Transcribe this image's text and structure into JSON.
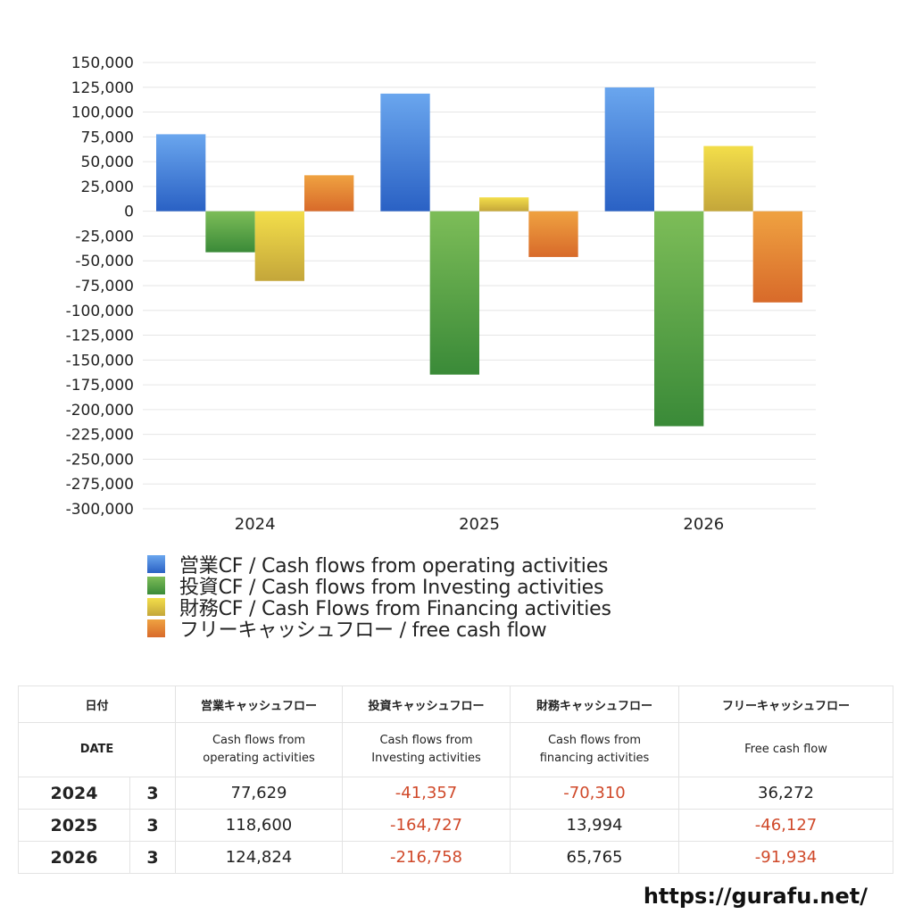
{
  "chart_data": {
    "type": "bar",
    "categories": [
      "2024",
      "2025",
      "2026"
    ],
    "ylim": [
      -300000,
      150000
    ],
    "y_ticks": [
      "150,000",
      "125,000",
      "100,000",
      "75,000",
      "50,000",
      "25,000",
      "0",
      "-25,000",
      "-50,000",
      "-75,000",
      "-100,000",
      "-125,000",
      "-150,000",
      "-175,000",
      "-200,000",
      "-225,000",
      "-250,000",
      "-275,000",
      "-300,000"
    ],
    "grid": true,
    "legend_position": "bottom",
    "series": [
      {
        "name": "営業CF / Cash flows from operating activities",
        "values": [
          77629,
          118600,
          124824
        ],
        "color_top": "#6aa6ee",
        "color_bottom": "#2a61c4"
      },
      {
        "name": "投資CF / Cash flows from Investing activities",
        "values": [
          -41357,
          -164727,
          -216758
        ],
        "color_top": "#7dbd58",
        "color_bottom": "#3a8a38"
      },
      {
        "name": "財務CF / Cash Flows from Financing activities",
        "values": [
          -70310,
          13994,
          65765
        ],
        "color_top": "#f3de4a",
        "color_bottom": "#c4a63a"
      },
      {
        "name": "フリーキャッシュフロー / free cash flow",
        "values": [
          36272,
          -46127,
          -91934
        ],
        "color_top": "#efa241",
        "color_bottom": "#d86a2a"
      }
    ]
  },
  "table": {
    "header": {
      "date": "日付",
      "operating": "営業キャッシュフロー",
      "investing": "投資キャッシュフロー",
      "financing": "財務キャッシュフロー",
      "free": "フリーキャッシュフロー"
    },
    "subheader": {
      "date": "DATE",
      "operating_1": "Cash flows from",
      "operating_2": "operating activities",
      "investing_1": "Cash flows from",
      "investing_2": "Investing activities",
      "financing_1": "Cash flows from",
      "financing_2": "financing activities",
      "free": "Free cash flow"
    },
    "rows": [
      {
        "year": "2024",
        "month": "3",
        "operating": "77,629",
        "investing": "-41,357",
        "financing": "-70,310",
        "free": "36,272"
      },
      {
        "year": "2025",
        "month": "3",
        "operating": "118,600",
        "investing": "-164,727",
        "financing": "13,994",
        "free": "-46,127"
      },
      {
        "year": "2026",
        "month": "3",
        "operating": "124,824",
        "investing": "-216,758",
        "financing": "65,765",
        "free": "-91,934"
      }
    ]
  },
  "site_url": "https://gurafu.net/"
}
